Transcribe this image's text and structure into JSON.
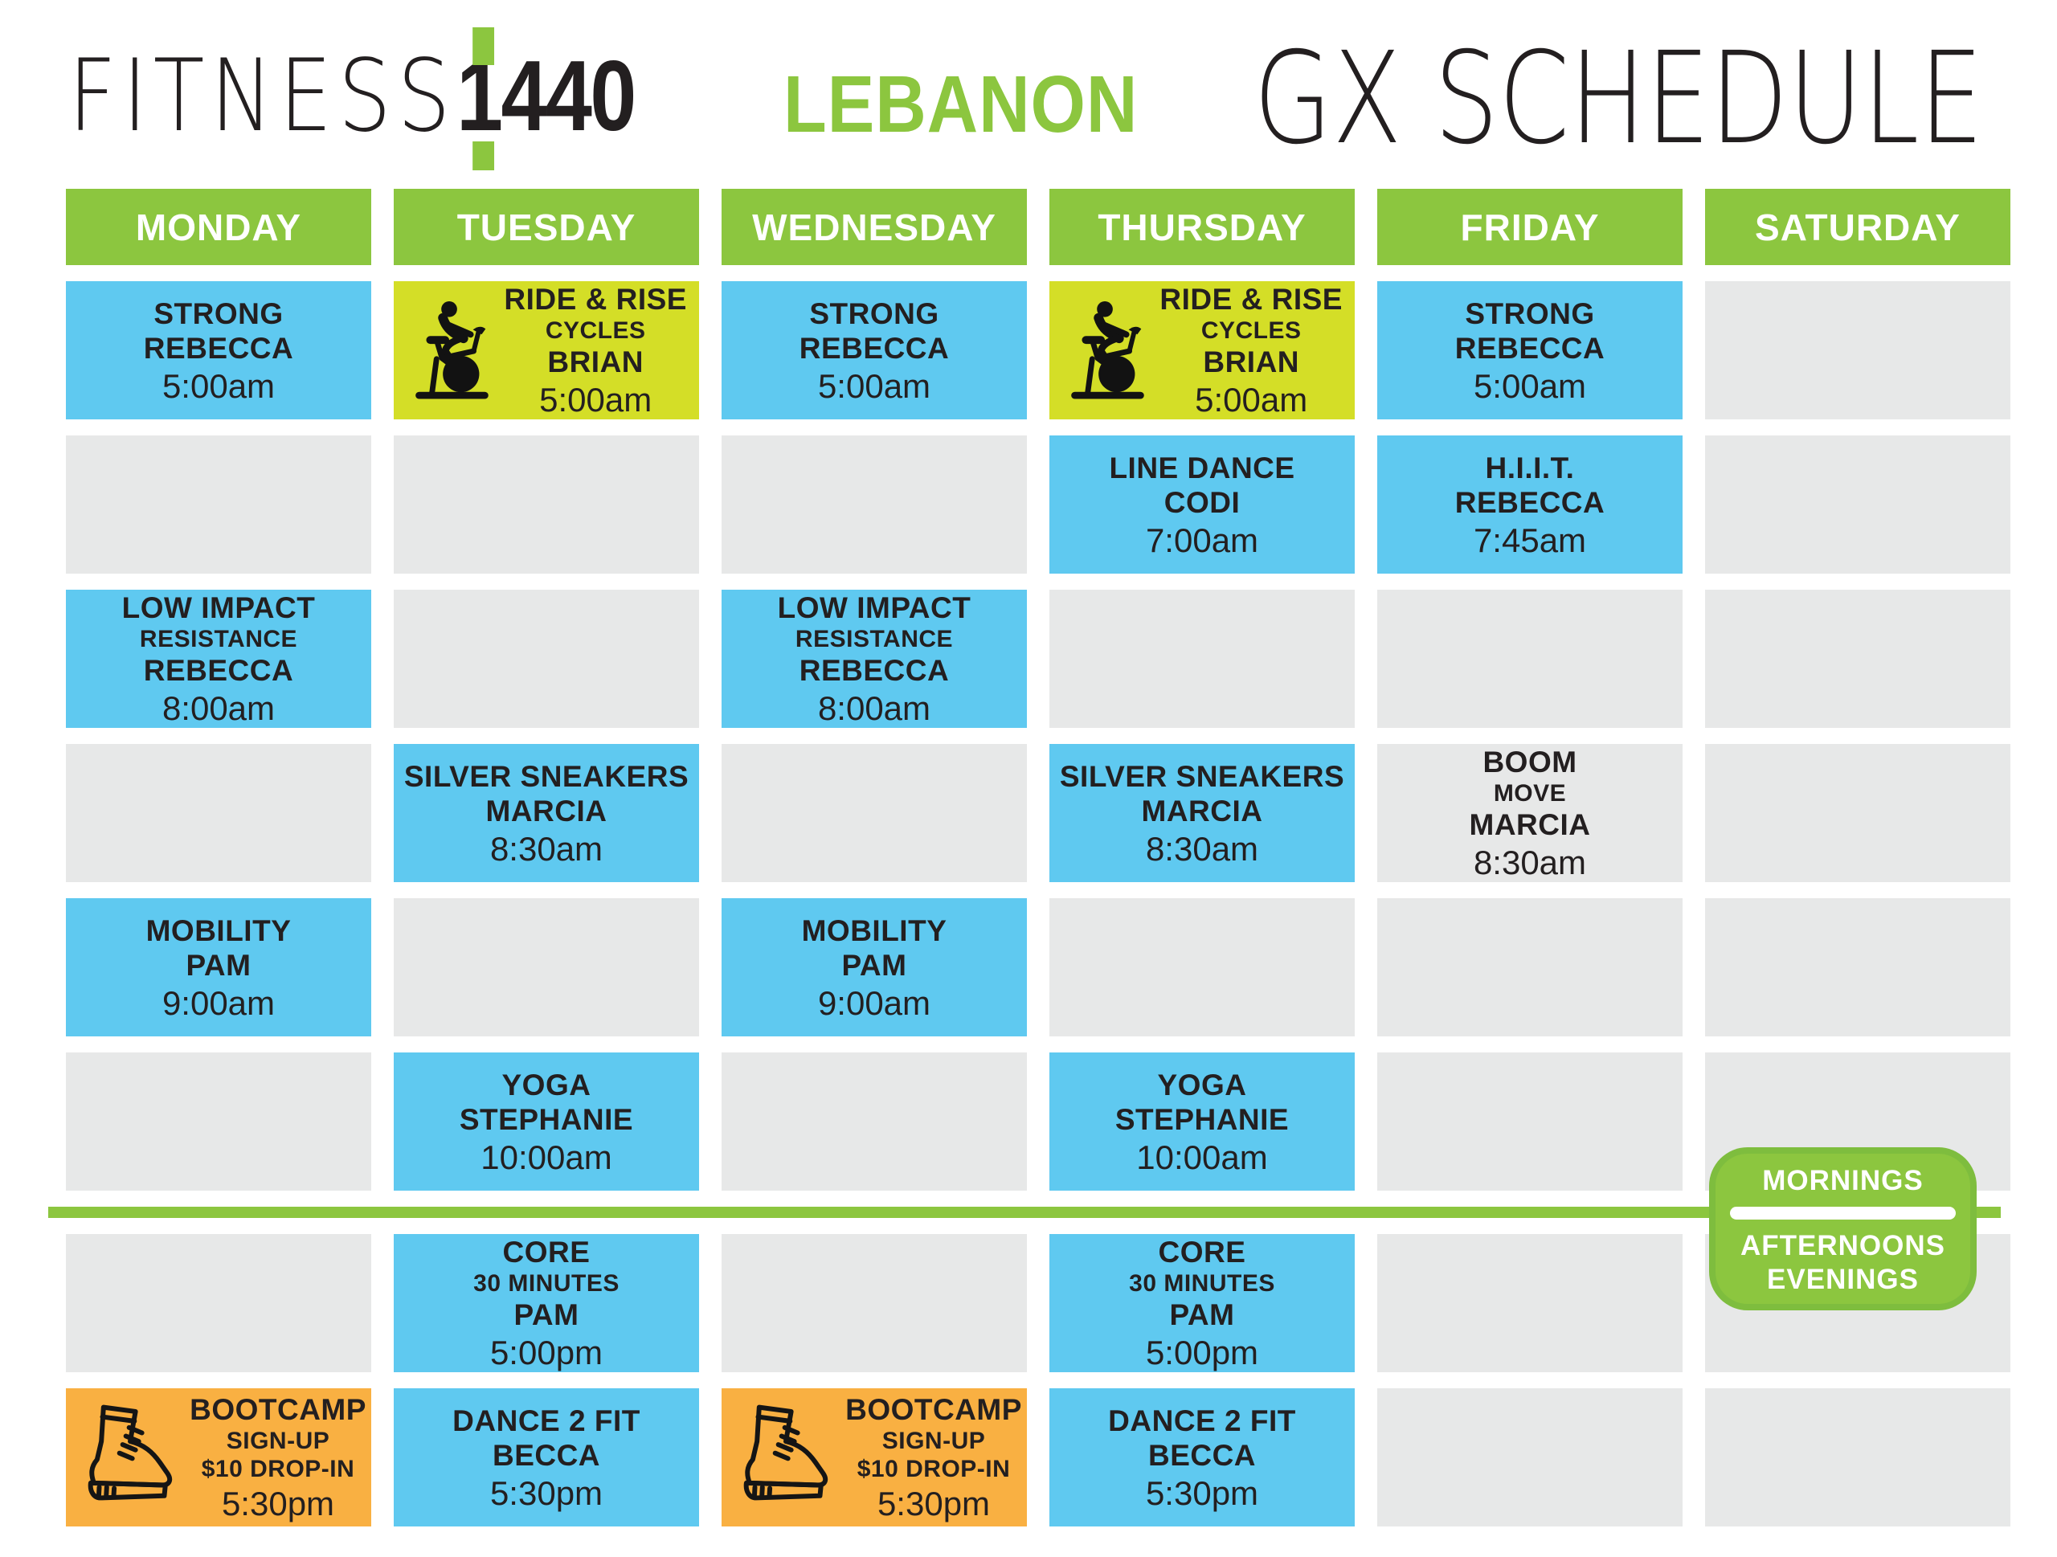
{
  "header": {
    "brand_light": "FITNESS",
    "brand_bold": "1440",
    "location": "LEBANON",
    "title": "GX SCHEDULE"
  },
  "colors": {
    "green": "#8CC63F",
    "blue": "#5FC9F0",
    "lime": "#D4DE27",
    "orange": "#F9B042",
    "gray": "#E7E8E8",
    "text_dark": "#231F20",
    "white": "#FFFFFF"
  },
  "legend": {
    "mornings": "MORNINGS",
    "afternoons": "AFTERNOONS",
    "evenings": "EVENINGS"
  },
  "schedule": {
    "days": [
      "MONDAY",
      "TUESDAY",
      "WEDNESDAY",
      "THURSDAY",
      "FRIDAY",
      "SATURDAY"
    ],
    "rows": [
      [
        {
          "type": "class",
          "variant": "blue",
          "icon": null,
          "lines": [
            {
              "text": "STRONG",
              "kind": "title"
            },
            {
              "text": "REBECCA",
              "kind": "title"
            },
            {
              "text": "5:00am",
              "kind": "time"
            }
          ]
        },
        {
          "type": "class",
          "variant": "lime",
          "icon": "icon-spin-bike",
          "lines": [
            {
              "text": "RIDE & RISE",
              "kind": "title"
            },
            {
              "text": "CYCLES",
              "kind": "sub"
            },
            {
              "text": "BRIAN",
              "kind": "title"
            },
            {
              "text": "5:00am",
              "kind": "time"
            }
          ]
        },
        {
          "type": "class",
          "variant": "blue",
          "icon": null,
          "lines": [
            {
              "text": "STRONG",
              "kind": "title"
            },
            {
              "text": "REBECCA",
              "kind": "title"
            },
            {
              "text": "5:00am",
              "kind": "time"
            }
          ]
        },
        {
          "type": "class",
          "variant": "lime",
          "icon": "icon-spin-bike",
          "lines": [
            {
              "text": "RIDE & RISE",
              "kind": "title"
            },
            {
              "text": "CYCLES",
              "kind": "sub"
            },
            {
              "text": "BRIAN",
              "kind": "title"
            },
            {
              "text": "5:00am",
              "kind": "time"
            }
          ]
        },
        {
          "type": "class",
          "variant": "blue",
          "icon": null,
          "lines": [
            {
              "text": "STRONG",
              "kind": "title"
            },
            {
              "text": "REBECCA",
              "kind": "title"
            },
            {
              "text": "5:00am",
              "kind": "time"
            }
          ]
        },
        {
          "type": "empty"
        }
      ],
      [
        {
          "type": "empty"
        },
        {
          "type": "empty"
        },
        {
          "type": "empty"
        },
        {
          "type": "class",
          "variant": "blue",
          "icon": null,
          "lines": [
            {
              "text": "LINE DANCE",
              "kind": "title"
            },
            {
              "text": "CODI",
              "kind": "title"
            },
            {
              "text": "7:00am",
              "kind": "time"
            }
          ]
        },
        {
          "type": "class",
          "variant": "blue",
          "icon": null,
          "lines": [
            {
              "text": "H.I.I.T.",
              "kind": "title"
            },
            {
              "text": "REBECCA",
              "kind": "title"
            },
            {
              "text": "7:45am",
              "kind": "time"
            }
          ]
        },
        {
          "type": "empty"
        }
      ],
      [
        {
          "type": "class",
          "variant": "blue",
          "icon": null,
          "lines": [
            {
              "text": "LOW IMPACT",
              "kind": "title"
            },
            {
              "text": "RESISTANCE",
              "kind": "sub"
            },
            {
              "text": "REBECCA",
              "kind": "title"
            },
            {
              "text": "8:00am",
              "kind": "time"
            }
          ]
        },
        {
          "type": "empty"
        },
        {
          "type": "class",
          "variant": "blue",
          "icon": null,
          "lines": [
            {
              "text": "LOW IMPACT",
              "kind": "title"
            },
            {
              "text": "RESISTANCE",
              "kind": "sub"
            },
            {
              "text": "REBECCA",
              "kind": "title"
            },
            {
              "text": "8:00am",
              "kind": "time"
            }
          ]
        },
        {
          "type": "empty"
        },
        {
          "type": "empty"
        },
        {
          "type": "empty"
        }
      ],
      [
        {
          "type": "empty"
        },
        {
          "type": "class",
          "variant": "blue",
          "icon": null,
          "lines": [
            {
              "text": "SILVER SNEAKERS",
              "kind": "title"
            },
            {
              "text": "MARCIA",
              "kind": "title"
            },
            {
              "text": "8:30am",
              "kind": "time"
            }
          ]
        },
        {
          "type": "empty"
        },
        {
          "type": "class",
          "variant": "blue",
          "icon": null,
          "lines": [
            {
              "text": "SILVER SNEAKERS",
              "kind": "title"
            },
            {
              "text": "MARCIA",
              "kind": "title"
            },
            {
              "text": "8:30am",
              "kind": "time"
            }
          ]
        },
        {
          "type": "class",
          "variant": "gray-text",
          "icon": null,
          "lines": [
            {
              "text": "BOOM",
              "kind": "title"
            },
            {
              "text": "MOVE",
              "kind": "sub"
            },
            {
              "text": "MARCIA",
              "kind": "title"
            },
            {
              "text": "8:30am",
              "kind": "time"
            }
          ]
        },
        {
          "type": "empty"
        }
      ],
      [
        {
          "type": "class",
          "variant": "blue",
          "icon": null,
          "lines": [
            {
              "text": "MOBILITY",
              "kind": "title"
            },
            {
              "text": "PAM",
              "kind": "title"
            },
            {
              "text": "9:00am",
              "kind": "time"
            }
          ]
        },
        {
          "type": "empty"
        },
        {
          "type": "class",
          "variant": "blue",
          "icon": null,
          "lines": [
            {
              "text": "MOBILITY",
              "kind": "title"
            },
            {
              "text": "PAM",
              "kind": "title"
            },
            {
              "text": "9:00am",
              "kind": "time"
            }
          ]
        },
        {
          "type": "empty"
        },
        {
          "type": "empty"
        },
        {
          "type": "empty"
        }
      ],
      [
        {
          "type": "empty"
        },
        {
          "type": "class",
          "variant": "blue",
          "icon": null,
          "lines": [
            {
              "text": "YOGA",
              "kind": "title"
            },
            {
              "text": "STEPHANIE",
              "kind": "title"
            },
            {
              "text": "10:00am",
              "kind": "time"
            }
          ]
        },
        {
          "type": "empty"
        },
        {
          "type": "class",
          "variant": "blue",
          "icon": null,
          "lines": [
            {
              "text": "YOGA",
              "kind": "title"
            },
            {
              "text": "STEPHANIE",
              "kind": "title"
            },
            {
              "text": "10:00am",
              "kind": "time"
            }
          ]
        },
        {
          "type": "empty"
        },
        {
          "type": "empty"
        }
      ],
      [
        {
          "type": "empty"
        },
        {
          "type": "class",
          "variant": "blue",
          "icon": null,
          "lines": [
            {
              "text": "CORE",
              "kind": "title"
            },
            {
              "text": "30 MINUTES",
              "kind": "sub"
            },
            {
              "text": "PAM",
              "kind": "title"
            },
            {
              "text": "5:00pm",
              "kind": "time"
            }
          ]
        },
        {
          "type": "empty"
        },
        {
          "type": "class",
          "variant": "blue",
          "icon": null,
          "lines": [
            {
              "text": "CORE",
              "kind": "title"
            },
            {
              "text": "30 MINUTES",
              "kind": "sub"
            },
            {
              "text": "PAM",
              "kind": "title"
            },
            {
              "text": "5:00pm",
              "kind": "time"
            }
          ]
        },
        {
          "type": "empty"
        },
        {
          "type": "empty"
        }
      ],
      [
        {
          "type": "class",
          "variant": "orange",
          "icon": "icon-boot",
          "lines": [
            {
              "text": "BOOTCAMP",
              "kind": "title"
            },
            {
              "text": "SIGN-UP",
              "kind": "sub"
            },
            {
              "text": "$10 DROP-IN",
              "kind": "sub"
            },
            {
              "text": "5:30pm",
              "kind": "time"
            }
          ]
        },
        {
          "type": "class",
          "variant": "blue",
          "icon": null,
          "lines": [
            {
              "text": "DANCE 2 FIT",
              "kind": "title"
            },
            {
              "text": "BECCA",
              "kind": "title"
            },
            {
              "text": "5:30pm",
              "kind": "time"
            }
          ]
        },
        {
          "type": "class",
          "variant": "orange",
          "icon": "icon-boot",
          "lines": [
            {
              "text": "BOOTCAMP",
              "kind": "title"
            },
            {
              "text": "SIGN-UP",
              "kind": "sub"
            },
            {
              "text": "$10 DROP-IN",
              "kind": "sub"
            },
            {
              "text": "5:30pm",
              "kind": "time"
            }
          ]
        },
        {
          "type": "class",
          "variant": "blue",
          "icon": null,
          "lines": [
            {
              "text": "DANCE 2 FIT",
              "kind": "title"
            },
            {
              "text": "BECCA",
              "kind": "title"
            },
            {
              "text": "5:30pm",
              "kind": "time"
            }
          ]
        },
        {
          "type": "empty"
        },
        {
          "type": "empty"
        }
      ]
    ]
  }
}
